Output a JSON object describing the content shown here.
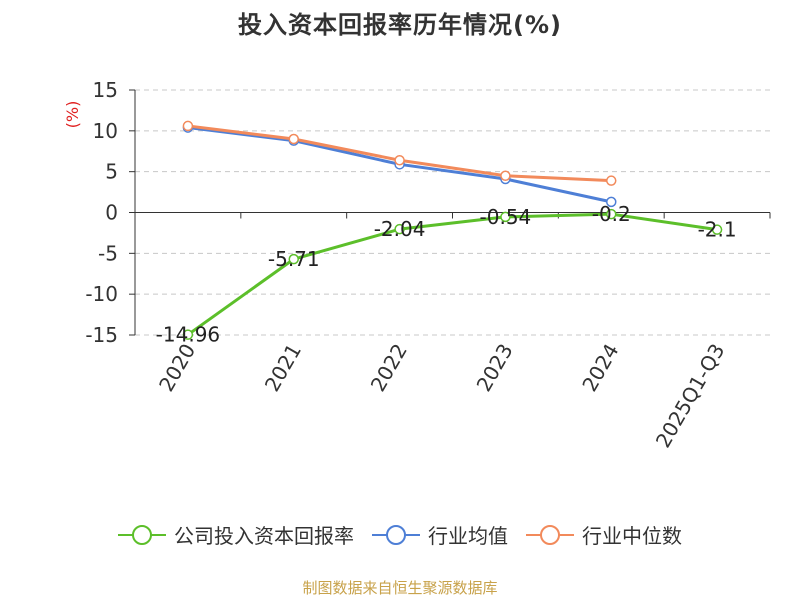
{
  "chart_data": {
    "type": "line",
    "title": "投入资本回报率历年情况(%)",
    "ylabel": "(%)",
    "xlabel": "",
    "categories": [
      "2020",
      "2021",
      "2022",
      "2023",
      "2024",
      "2025Q1-Q3"
    ],
    "ylim": [
      -15,
      15
    ],
    "yticks": [
      15,
      10,
      5,
      0,
      -5,
      -10,
      -15
    ],
    "grid": true,
    "legend_position": "bottom",
    "series": [
      {
        "name": "公司投入资本回报率",
        "color": "#5cbf2a",
        "values": [
          -14.96,
          -5.71,
          -2.04,
          -0.54,
          -0.2,
          -2.1
        ],
        "labels": [
          "-14.96",
          "-5.71",
          "-2.04",
          "-0.54",
          "-0.2",
          "-2.1"
        ]
      },
      {
        "name": "行业均值",
        "color": "#4e7fd6",
        "values": [
          10.4,
          8.8,
          5.9,
          4.1,
          1.3,
          null
        ]
      },
      {
        "name": "行业中位数",
        "color": "#f28a5b",
        "values": [
          10.6,
          9.0,
          6.4,
          4.5,
          3.9,
          null
        ]
      }
    ]
  },
  "source_text": "制图数据来自恒生聚源数据库"
}
